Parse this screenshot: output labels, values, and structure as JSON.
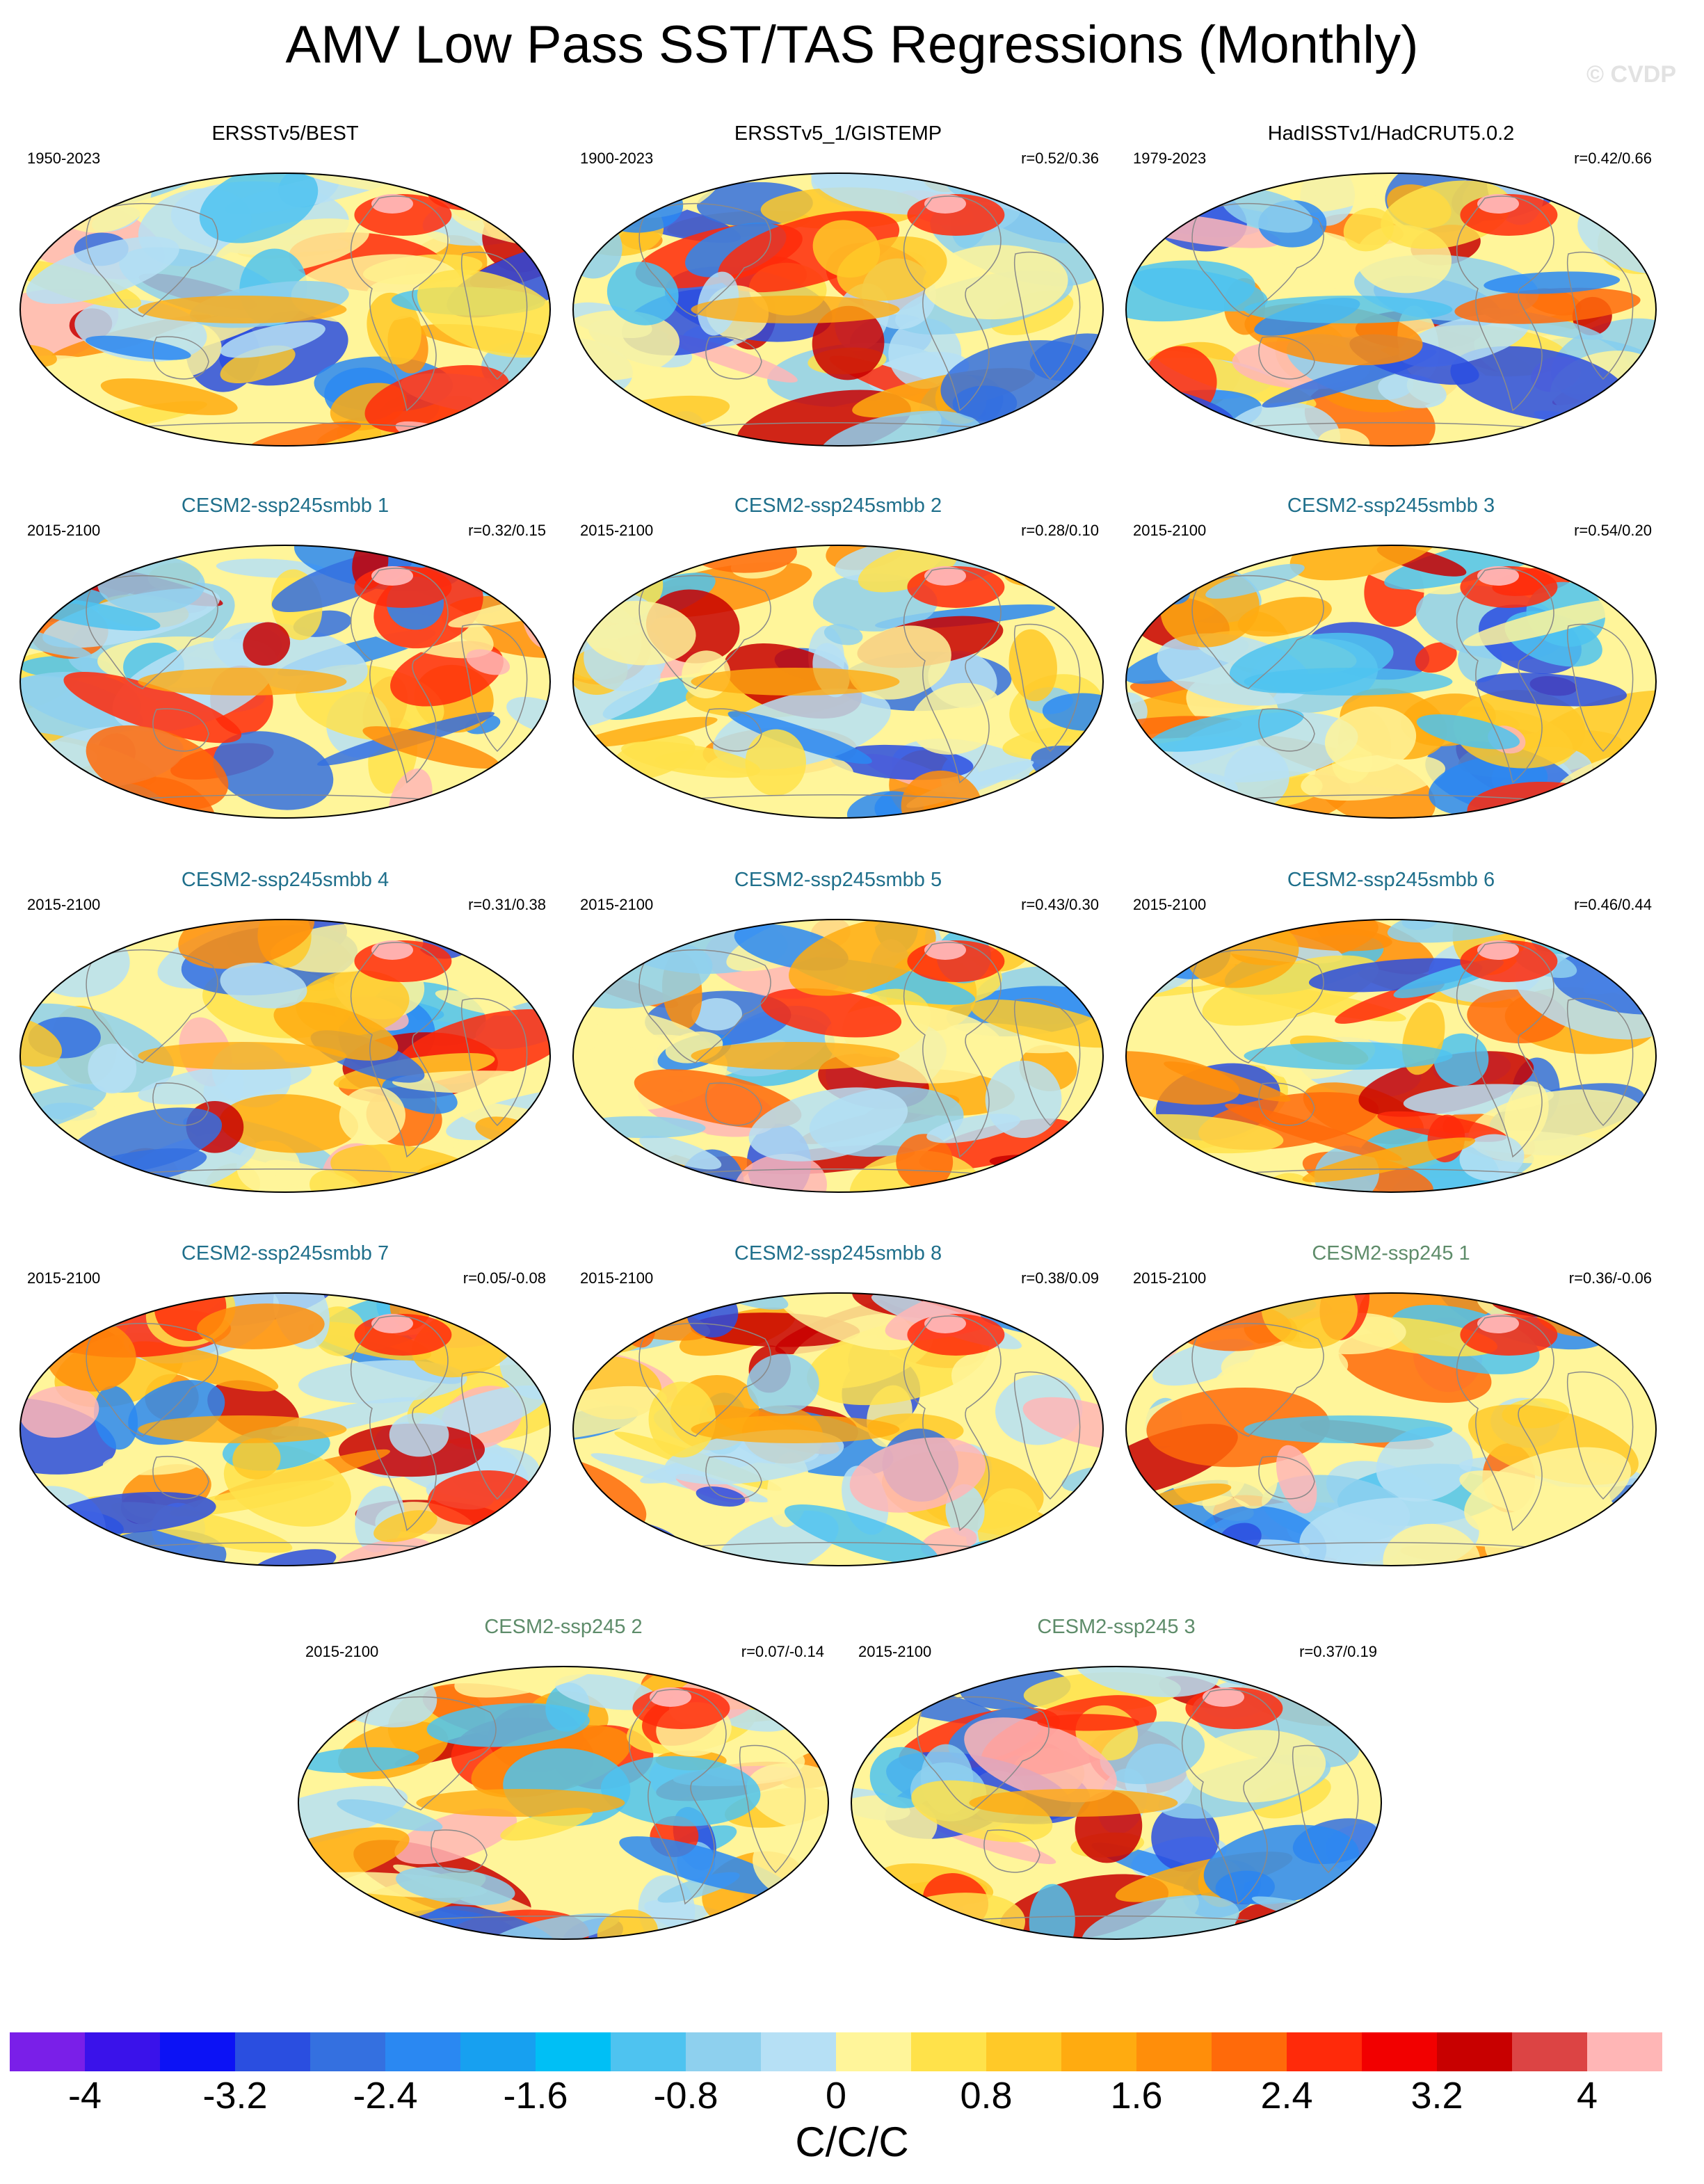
{
  "title": "AMV Low Pass SST/TAS Regressions (Monthly)",
  "watermark": "© CVDP",
  "panels": [
    {
      "title": "ERSSTv5/BEST",
      "period": "1950-2023",
      "r": "",
      "style": "obs"
    },
    {
      "title": "ERSSTv5_1/GISTEMP",
      "period": "1900-2023",
      "r": "r=0.52/0.36",
      "style": "obs"
    },
    {
      "title": "HadISSTv1/HadCRUT5.0.2",
      "period": "1979-2023",
      "r": "r=0.42/0.66",
      "style": "obs"
    },
    {
      "title": "CESM2-ssp245smbb 1",
      "period": "2015-2100",
      "r": "r=0.32/0.15",
      "style": "smbb"
    },
    {
      "title": "CESM2-ssp245smbb 2",
      "period": "2015-2100",
      "r": "r=0.28/0.10",
      "style": "smbb"
    },
    {
      "title": "CESM2-ssp245smbb 3",
      "period": "2015-2100",
      "r": "r=0.54/0.20",
      "style": "smbb"
    },
    {
      "title": "CESM2-ssp245smbb 4",
      "period": "2015-2100",
      "r": "r=0.31/0.38",
      "style": "smbb"
    },
    {
      "title": "CESM2-ssp245smbb 5",
      "period": "2015-2100",
      "r": "r=0.43/0.30",
      "style": "smbb"
    },
    {
      "title": "CESM2-ssp245smbb 6",
      "period": "2015-2100",
      "r": "r=0.46/0.44",
      "style": "smbb"
    },
    {
      "title": "CESM2-ssp245smbb 7",
      "period": "2015-2100",
      "r": "r=0.05/-0.08",
      "style": "smbb"
    },
    {
      "title": "CESM2-ssp245smbb 8",
      "period": "2015-2100",
      "r": "r=0.38/0.09",
      "style": "smbb"
    },
    {
      "title": "CESM2-ssp245 1",
      "period": "2015-2100",
      "r": "r=0.36/-0.06",
      "style": "ssp"
    },
    {
      "title": "CESM2-ssp245 2",
      "period": "2015-2100",
      "r": "r=0.07/-0.14",
      "style": "ssp"
    },
    {
      "title": "CESM2-ssp245 3",
      "period": "2015-2100",
      "r": "r=0.37/0.19",
      "style": "ssp"
    }
  ],
  "colorbar": {
    "colors": [
      "#7a1fe8",
      "#3a12ea",
      "#0c12f5",
      "#2a4ee0",
      "#3470e0",
      "#2a88f2",
      "#17a0f0",
      "#00bff5",
      "#4ec3f0",
      "#8ed0ee",
      "#b6e0f5",
      "#fff59a",
      "#ffe24a",
      "#ffc928",
      "#ffab10",
      "#ff8e0a",
      "#ff6a0a",
      "#ff2a0a",
      "#f20000",
      "#c80000",
      "#dc4444",
      "#ffb6b6"
    ],
    "tick_labels": [
      "-4",
      "-3.2",
      "-2.4",
      "-1.6",
      "-0.8",
      "0",
      "0.8",
      "1.6",
      "2.4",
      "3.2",
      "4"
    ],
    "units": "C/C/C"
  }
}
